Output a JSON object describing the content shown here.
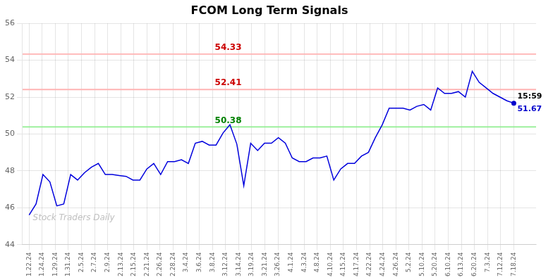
{
  "chart_data": {
    "type": "line",
    "title": "FCOM Long Term Signals",
    "color": "#0000dd",
    "grid": true,
    "x": [
      0,
      0.5286,
      1.0571,
      1.5857,
      2.1143,
      2.6429,
      3.1714,
      3.7,
      4.2286,
      4.7571,
      5.2857,
      5.8143,
      6.3429,
      6.8714,
      7.4,
      7.9286,
      8.4571,
      8.9857,
      9.5143,
      10.0429,
      10.5714,
      11.1,
      11.6286,
      12.1571,
      12.6857,
      13.2143,
      13.7429,
      14.2714,
      14.8,
      15.3286,
      15.8571,
      16.3857,
      16.9143,
      17.4429,
      17.9714,
      18.5,
      19.0286,
      19.5571,
      20.0857,
      20.6143,
      21.1429,
      21.6714,
      22.2,
      22.7286,
      23.2571,
      23.7857,
      24.3143,
      24.8429,
      25.3714,
      25.9,
      26.4286,
      26.9571,
      27.4857,
      28.0143,
      28.5429,
      29.0714,
      29.6,
      30.1286,
      30.6571,
      31.1857,
      31.7143,
      32.2429,
      32.7714,
      33.3,
      33.8286,
      34.3571,
      34.8857,
      35.4143,
      35.9429,
      36.4714,
      37
    ],
    "values": [
      45.6,
      46.2,
      47.8,
      47.4,
      46.1,
      46.2,
      47.8,
      47.5,
      47.9,
      48.2,
      48.4,
      47.8,
      47.8,
      47.75,
      47.7,
      47.5,
      47.5,
      48.1,
      48.4,
      47.8,
      48.5,
      48.5,
      48.6,
      48.4,
      49.5,
      49.6,
      49.4,
      49.4,
      50.05,
      50.5,
      49.45,
      47.2,
      49.5,
      49.1,
      49.5,
      49.5,
      49.8,
      49.5,
      48.7,
      48.5,
      48.5,
      48.7,
      48.7,
      48.8,
      47.5,
      48.1,
      48.4,
      48.4,
      48.8,
      49.0,
      49.8,
      50.5,
      51.4,
      51.4,
      51.4,
      51.3,
      51.5,
      51.6,
      51.3,
      52.5,
      52.2,
      52.2,
      52.3,
      52.0,
      53.4,
      52.8,
      52.5,
      52.2,
      52.0,
      51.8,
      51.67
    ],
    "xlim": [
      -0.5,
      38.7
    ],
    "xticks": [
      {
        "value": 0,
        "label": "1.22.24"
      },
      {
        "value": 1,
        "label": "1.24.24"
      },
      {
        "value": 2,
        "label": "1.29.24"
      },
      {
        "value": 3,
        "label": "1.31.24"
      },
      {
        "value": 4,
        "label": "2.5.24"
      },
      {
        "value": 5,
        "label": "2.7.24"
      },
      {
        "value": 6,
        "label": "2.9.24"
      },
      {
        "value": 7,
        "label": "2.13.24"
      },
      {
        "value": 8,
        "label": "2.15.24"
      },
      {
        "value": 9,
        "label": "2.21.24"
      },
      {
        "value": 10,
        "label": "2.26.24"
      },
      {
        "value": 11,
        "label": "2.28.24"
      },
      {
        "value": 12,
        "label": "3.4.24"
      },
      {
        "value": 13,
        "label": "3.6.24"
      },
      {
        "value": 14,
        "label": "3.8.24"
      },
      {
        "value": 15,
        "label": "3.12.24"
      },
      {
        "value": 16,
        "label": "3.14.24"
      },
      {
        "value": 17,
        "label": "3.19.24"
      },
      {
        "value": 18,
        "label": "3.21.24"
      },
      {
        "value": 19,
        "label": "3.26.24"
      },
      {
        "value": 20,
        "label": "4.1.24"
      },
      {
        "value": 21,
        "label": "4.3.24"
      },
      {
        "value": 22,
        "label": "4.8.24"
      },
      {
        "value": 23,
        "label": "4.10.24"
      },
      {
        "value": 24,
        "label": "4.15.24"
      },
      {
        "value": 25,
        "label": "4.17.24"
      },
      {
        "value": 26,
        "label": "4.22.24"
      },
      {
        "value": 27,
        "label": "4.24.24"
      },
      {
        "value": 28,
        "label": "4.26.24"
      },
      {
        "value": 29,
        "label": "5.2.24"
      },
      {
        "value": 30,
        "label": "5.10.24"
      },
      {
        "value": 31,
        "label": "5.20.24"
      },
      {
        "value": 32,
        "label": "6.10.24"
      },
      {
        "value": 33,
        "label": "6.13.24"
      },
      {
        "value": 34,
        "label": "6.20.24"
      },
      {
        "value": 35,
        "label": "7.3.24"
      },
      {
        "value": 36,
        "label": "7.12.24"
      },
      {
        "value": 37,
        "label": "7.18.24"
      }
    ],
    "ylim": [
      44,
      56
    ],
    "yticks": [
      44,
      46,
      48,
      50,
      52,
      54,
      56
    ],
    "annotations": [
      {
        "type": "hline",
        "y": 54.33,
        "color": "#ffb3b3",
        "text": "54.33",
        "text_color": "#cc0000"
      },
      {
        "type": "hline",
        "y": 52.41,
        "color": "#ffb3b3",
        "text": "52.41",
        "text_color": "#cc0000"
      },
      {
        "type": "hline",
        "y": 50.38,
        "color": "#90ee90",
        "text": "50.38",
        "text_color": "#008000"
      },
      {
        "type": "point",
        "x": 37,
        "y": 51.67,
        "color": "#0000cc",
        "text": "15:59",
        "value_text": "51.67"
      },
      {
        "type": "text",
        "text": "Stock Traders Daily"
      }
    ]
  }
}
